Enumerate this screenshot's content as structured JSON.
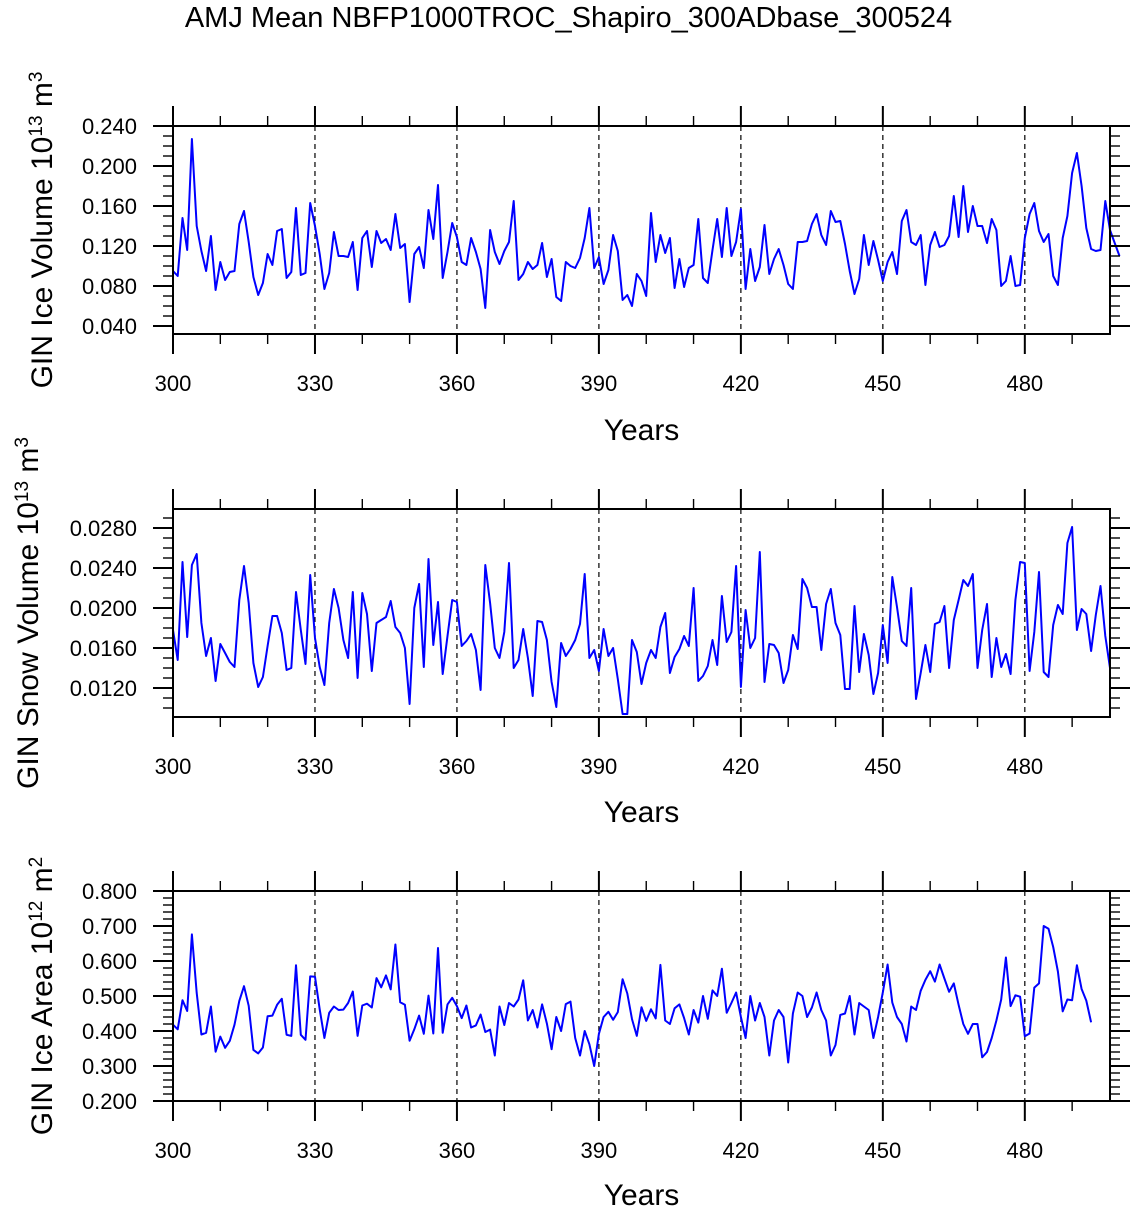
{
  "title": "AMJ Mean NBFP1000TROC_Shapiro_300ADbase_300524",
  "chart_data": [
    {
      "type": "line",
      "id": "ice-volume",
      "ylabel_main": "GIN Ice Volume 10",
      "ylabel_exp": "13",
      "ylabel_unit": " m",
      "ylabel_unit_exp": "3",
      "xlabel": "Years",
      "xlim": [
        300,
        498
      ],
      "ylim": [
        0.032,
        0.24
      ],
      "xticks": [
        300,
        330,
        360,
        390,
        420,
        450,
        480
      ],
      "xtick_labels": [
        "300",
        "330",
        "360",
        "390",
        "420",
        "450",
        "480"
      ],
      "yticks": [
        0.04,
        0.08,
        0.12,
        0.16,
        0.2,
        0.24
      ],
      "ytick_labels": [
        "0.040",
        "0.080",
        "0.120",
        "0.160",
        "0.200",
        "0.240"
      ],
      "yminor_step": 0.01,
      "grid": "dashed vertical at major x ticks",
      "line_color": "#0000ff",
      "x_start": 300,
      "values": [
        0.095,
        0.09,
        0.148,
        0.116,
        0.227,
        0.14,
        0.115,
        0.095,
        0.13,
        0.076,
        0.104,
        0.086,
        0.094,
        0.095,
        0.142,
        0.155,
        0.124,
        0.089,
        0.071,
        0.083,
        0.112,
        0.101,
        0.135,
        0.137,
        0.088,
        0.094,
        0.158,
        0.091,
        0.093,
        0.163,
        0.14,
        0.112,
        0.077,
        0.093,
        0.134,
        0.11,
        0.11,
        0.109,
        0.124,
        0.076,
        0.128,
        0.135,
        0.099,
        0.135,
        0.123,
        0.127,
        0.116,
        0.152,
        0.118,
        0.122,
        0.064,
        0.112,
        0.119,
        0.098,
        0.156,
        0.127,
        0.181,
        0.088,
        0.114,
        0.143,
        0.129,
        0.104,
        0.101,
        0.128,
        0.114,
        0.097,
        0.058,
        0.136,
        0.114,
        0.102,
        0.115,
        0.124,
        0.165,
        0.086,
        0.092,
        0.104,
        0.097,
        0.101,
        0.123,
        0.089,
        0.107,
        0.069,
        0.065,
        0.104,
        0.1,
        0.098,
        0.108,
        0.128,
        0.158,
        0.098,
        0.109,
        0.082,
        0.096,
        0.131,
        0.115,
        0.066,
        0.071,
        0.06,
        0.092,
        0.085,
        0.07,
        0.153,
        0.104,
        0.131,
        0.113,
        0.128,
        0.078,
        0.107,
        0.079,
        0.098,
        0.101,
        0.147,
        0.088,
        0.083,
        0.116,
        0.147,
        0.109,
        0.158,
        0.11,
        0.124,
        0.157,
        0.077,
        0.117,
        0.085,
        0.099,
        0.141,
        0.092,
        0.107,
        0.117,
        0.101,
        0.082,
        0.077,
        0.124,
        0.124,
        0.125,
        0.142,
        0.152,
        0.131,
        0.121,
        0.155,
        0.144,
        0.145,
        0.122,
        0.095,
        0.072,
        0.087,
        0.131,
        0.101,
        0.125,
        0.106,
        0.085,
        0.104,
        0.114,
        0.092,
        0.145,
        0.156,
        0.124,
        0.121,
        0.131,
        0.081,
        0.121,
        0.134,
        0.119,
        0.121,
        0.13,
        0.17,
        0.129,
        0.18,
        0.134,
        0.16,
        0.14,
        0.14,
        0.123,
        0.147,
        0.136,
        0.08,
        0.085,
        0.11,
        0.08,
        0.081,
        0.128,
        0.152,
        0.163,
        0.135,
        0.124,
        0.132,
        0.09,
        0.081,
        0.128,
        0.15,
        0.193,
        0.213,
        0.18,
        0.138,
        0.117,
        0.115,
        0.116,
        0.165,
        0.136,
        0.123,
        0.11
      ]
    },
    {
      "type": "line",
      "id": "snow-volume",
      "ylabel_main": "GIN Snow Volume 10",
      "ylabel_exp": "13",
      "ylabel_unit": " m",
      "ylabel_unit_exp": "3",
      "xlabel": "Years",
      "xlim": [
        300,
        498
      ],
      "ylim": [
        0.0091,
        0.0299
      ],
      "xticks": [
        300,
        330,
        360,
        390,
        420,
        450,
        480
      ],
      "xtick_labels": [
        "300",
        "330",
        "360",
        "390",
        "420",
        "450",
        "480"
      ],
      "yticks": [
        0.012,
        0.016,
        0.02,
        0.024,
        0.028
      ],
      "ytick_labels": [
        "0.0120",
        "0.0160",
        "0.0200",
        "0.0240",
        "0.0280"
      ],
      "yminor_step": 0.001,
      "grid": "dashed vertical at major x ticks",
      "line_color": "#0000ff",
      "x_start": 300,
      "values": [
        0.0178,
        0.0148,
        0.0246,
        0.0171,
        0.0243,
        0.0254,
        0.0185,
        0.0152,
        0.017,
        0.0127,
        0.0164,
        0.0155,
        0.0146,
        0.0141,
        0.0208,
        0.0242,
        0.0205,
        0.0145,
        0.0121,
        0.0131,
        0.0162,
        0.0192,
        0.0192,
        0.0175,
        0.0138,
        0.014,
        0.0216,
        0.0178,
        0.0144,
        0.0233,
        0.017,
        0.0141,
        0.0123,
        0.0185,
        0.0219,
        0.02,
        0.0168,
        0.015,
        0.0216,
        0.013,
        0.0215,
        0.0194,
        0.0137,
        0.0185,
        0.0188,
        0.0191,
        0.0207,
        0.0181,
        0.0175,
        0.016,
        0.0104,
        0.02,
        0.0224,
        0.0141,
        0.0249,
        0.0163,
        0.0206,
        0.0134,
        0.0172,
        0.0208,
        0.0206,
        0.0162,
        0.0167,
        0.0174,
        0.0158,
        0.0118,
        0.0243,
        0.0205,
        0.016,
        0.015,
        0.0176,
        0.0245,
        0.014,
        0.0148,
        0.0179,
        0.015,
        0.0112,
        0.0187,
        0.0186,
        0.0168,
        0.0126,
        0.0101,
        0.0165,
        0.0152,
        0.0159,
        0.0168,
        0.0184,
        0.0234,
        0.015,
        0.0158,
        0.0137,
        0.0179,
        0.0152,
        0.016,
        0.0129,
        0.0094,
        0.0094,
        0.0168,
        0.0156,
        0.0124,
        0.0145,
        0.0158,
        0.015,
        0.0181,
        0.0195,
        0.0135,
        0.0151,
        0.0159,
        0.0172,
        0.0162,
        0.022,
        0.0127,
        0.0132,
        0.0142,
        0.0168,
        0.0143,
        0.0212,
        0.0166,
        0.0176,
        0.0242,
        0.0121,
        0.0198,
        0.016,
        0.017,
        0.0256,
        0.0126,
        0.0164,
        0.0163,
        0.0155,
        0.0125,
        0.0138,
        0.0173,
        0.0159,
        0.0229,
        0.022,
        0.0201,
        0.0201,
        0.0158,
        0.0204,
        0.0219,
        0.0185,
        0.0173,
        0.0119,
        0.0119,
        0.0202,
        0.0136,
        0.0174,
        0.0153,
        0.0114,
        0.0135,
        0.0183,
        0.0145,
        0.0231,
        0.0201,
        0.0167,
        0.0162,
        0.022,
        0.0109,
        0.0135,
        0.0163,
        0.0136,
        0.0184,
        0.0186,
        0.0202,
        0.014,
        0.0188,
        0.0208,
        0.0228,
        0.0222,
        0.0234,
        0.014,
        0.0178,
        0.0204,
        0.0131,
        0.017,
        0.0141,
        0.0154,
        0.0134,
        0.0208,
        0.0246,
        0.0245,
        0.0137,
        0.0176,
        0.0236,
        0.0136,
        0.0131,
        0.0183,
        0.0203,
        0.0194,
        0.0265,
        0.0281,
        0.0178,
        0.0199,
        0.0194,
        0.0157,
        0.0193,
        0.0222,
        0.0172,
        0.014
      ]
    },
    {
      "type": "line",
      "id": "ice-area",
      "ylabel_main": "GIN Ice Area 10",
      "ylabel_exp": "12",
      "ylabel_unit": " m",
      "ylabel_unit_exp": "2",
      "xlabel": "Years",
      "xlim": [
        300,
        498
      ],
      "ylim": [
        0.2,
        0.8
      ],
      "xticks": [
        300,
        330,
        360,
        390,
        420,
        450,
        480
      ],
      "xtick_labels": [
        "300",
        "330",
        "360",
        "390",
        "420",
        "450",
        "480"
      ],
      "yticks": [
        0.2,
        0.3,
        0.4,
        0.5,
        0.6,
        0.7,
        0.8
      ],
      "ytick_labels": [
        "0.200",
        "0.300",
        "0.400",
        "0.500",
        "0.600",
        "0.700",
        "0.800"
      ],
      "yminor_step": 0.02,
      "grid": "dashed vertical at major x ticks",
      "line_color": "#0000ff",
      "x_start": 300,
      "values": [
        0.418,
        0.405,
        0.488,
        0.457,
        0.676,
        0.509,
        0.39,
        0.395,
        0.47,
        0.341,
        0.384,
        0.352,
        0.372,
        0.418,
        0.486,
        0.528,
        0.472,
        0.346,
        0.336,
        0.353,
        0.442,
        0.444,
        0.475,
        0.492,
        0.389,
        0.386,
        0.588,
        0.389,
        0.375,
        0.556,
        0.555,
        0.462,
        0.38,
        0.452,
        0.47,
        0.46,
        0.461,
        0.48,
        0.513,
        0.386,
        0.473,
        0.478,
        0.467,
        0.551,
        0.525,
        0.559,
        0.519,
        0.647,
        0.482,
        0.475,
        0.372,
        0.405,
        0.444,
        0.392,
        0.501,
        0.393,
        0.637,
        0.395,
        0.476,
        0.495,
        0.471,
        0.437,
        0.473,
        0.41,
        0.416,
        0.447,
        0.397,
        0.404,
        0.33,
        0.47,
        0.417,
        0.48,
        0.47,
        0.49,
        0.545,
        0.43,
        0.46,
        0.41,
        0.476,
        0.421,
        0.348,
        0.44,
        0.4,
        0.477,
        0.484,
        0.38,
        0.33,
        0.4,
        0.362,
        0.3,
        0.392,
        0.44,
        0.455,
        0.432,
        0.454,
        0.548,
        0.507,
        0.434,
        0.386,
        0.468,
        0.429,
        0.462,
        0.436,
        0.589,
        0.43,
        0.42,
        0.465,
        0.476,
        0.437,
        0.39,
        0.46,
        0.424,
        0.5,
        0.435,
        0.516,
        0.5,
        0.578,
        0.452,
        0.48,
        0.51,
        0.44,
        0.38,
        0.5,
        0.43,
        0.48,
        0.44,
        0.33,
        0.43,
        0.46,
        0.44,
        0.31,
        0.45,
        0.51,
        0.5,
        0.44,
        0.467,
        0.51,
        0.46,
        0.43,
        0.33,
        0.36,
        0.446,
        0.45,
        0.5,
        0.39,
        0.48,
        0.47,
        0.46,
        0.38,
        0.44,
        0.51,
        0.59,
        0.481,
        0.44,
        0.42,
        0.37,
        0.47,
        0.46,
        0.515,
        0.546,
        0.571,
        0.541,
        0.59,
        0.55,
        0.512,
        0.536,
        0.475,
        0.42,
        0.392,
        0.42,
        0.42,
        0.325,
        0.34,
        0.38,
        0.43,
        0.49,
        0.61,
        0.471,
        0.502,
        0.498,
        0.385,
        0.393,
        0.524,
        0.536,
        0.7,
        0.692,
        0.64,
        0.57,
        0.456,
        0.49,
        0.488,
        0.588,
        0.52,
        0.487,
        0.425
      ]
    }
  ]
}
